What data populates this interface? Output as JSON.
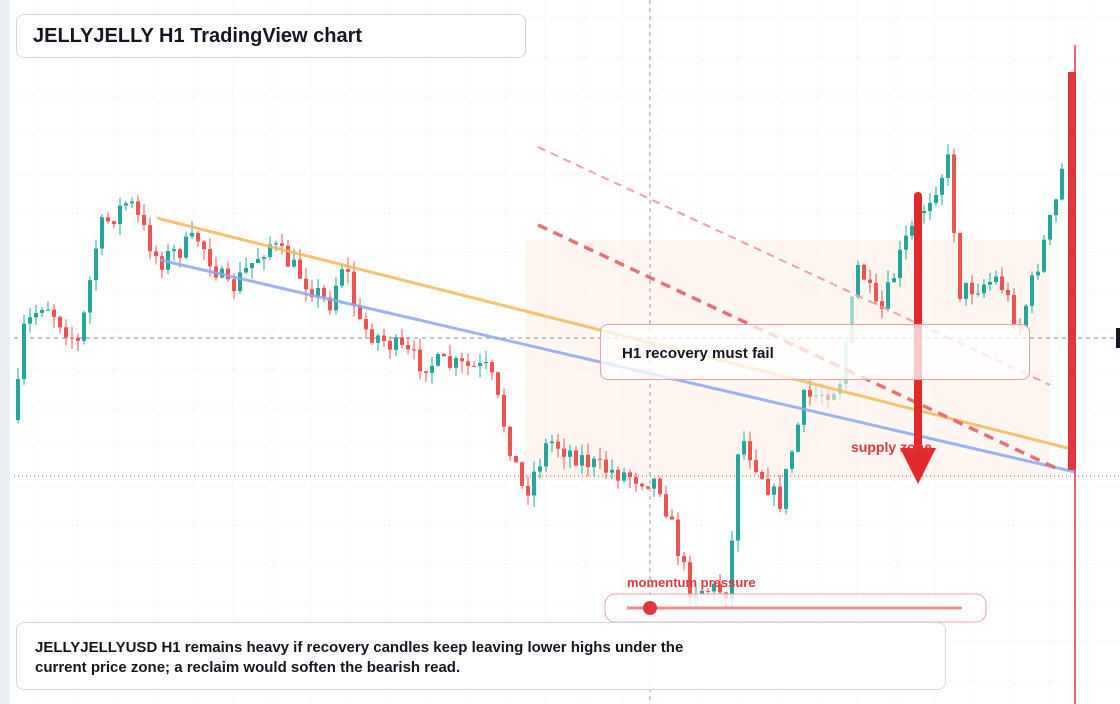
{
  "header": {
    "title": "JELLYJELLY H1 TradingView chart"
  },
  "annotations": {
    "callout": "H1 recovery must fail",
    "zone": "supply zone",
    "gauge": "momentum pressure"
  },
  "summary": "JELLYJELLYUSD H1 remains heavy if recovery candles keep leaving lower highs under the current price zone; a reclaim would soften the bearish read."
}
